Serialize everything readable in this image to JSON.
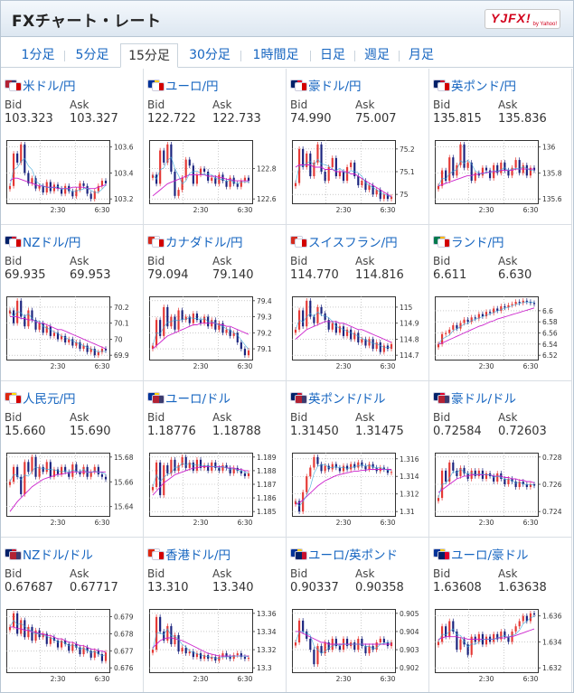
{
  "header": {
    "title": "FXチャート・レート",
    "logo_text": "YJFX!",
    "logo_sub": "by Yahoo!"
  },
  "tabs": [
    {
      "label": "1分足",
      "active": false
    },
    {
      "label": "5分足",
      "active": false
    },
    {
      "label": "15分足",
      "active": true
    },
    {
      "label": "30分足",
      "active": false
    },
    {
      "label": "1時間足",
      "active": false
    },
    {
      "label": "日足",
      "active": false
    },
    {
      "label": "週足",
      "active": false
    },
    {
      "label": "月足",
      "active": false
    }
  ],
  "labels": {
    "bid": "Bid",
    "ask": "Ask"
  },
  "colors": {
    "link": "#1665c0",
    "up": "#e53935",
    "down": "#1a237e",
    "ma": "#cc22cc",
    "ma2": "#3aa6d8"
  },
  "x_ticks": [
    "2:30",
    "6:30"
  ],
  "pairs": [
    {
      "name": "米ドル/円",
      "flags": [
        "us",
        "jp"
      ],
      "bid": "103.323",
      "ask": "103.327",
      "yticks": [
        "103.6",
        "103.4",
        "103.2"
      ],
      "series": [
        103.3,
        103.55,
        103.48,
        103.62,
        103.4,
        103.32,
        103.36,
        103.28,
        103.3,
        103.25,
        103.33,
        103.26,
        103.31,
        103.28,
        103.24,
        103.3,
        103.26,
        103.22,
        103.27,
        103.32,
        103.3,
        103.24,
        103.2,
        103.26,
        103.3,
        103.34,
        103.32
      ],
      "ma": [
        103.34,
        103.36,
        103.36,
        103.35,
        103.34,
        103.33,
        103.32,
        103.31,
        103.3,
        103.3,
        103.29,
        103.29,
        103.29,
        103.28,
        103.28,
        103.28,
        103.28,
        103.29,
        103.29,
        103.29,
        103.29,
        103.28,
        103.28,
        103.28,
        103.29,
        103.3,
        103.31
      ]
    },
    {
      "name": "ユーロ/円",
      "flags": [
        "eu",
        "jp"
      ],
      "bid": "122.722",
      "ask": "122.733",
      "yticks": [
        "122.8",
        "122.6"
      ],
      "series": [
        122.76,
        122.7,
        122.92,
        122.84,
        122.96,
        122.78,
        122.62,
        122.66,
        122.74,
        122.86,
        122.82,
        122.7,
        122.76,
        122.8,
        122.78,
        122.72,
        122.74,
        122.7,
        122.76,
        122.72,
        122.68,
        122.74,
        122.7,
        122.68,
        122.72,
        122.74,
        122.72
      ],
      "ma": [
        122.62,
        122.64,
        122.66,
        122.68,
        122.7,
        122.71,
        122.72,
        122.73,
        122.74,
        122.75,
        122.76,
        122.76,
        122.76,
        122.76,
        122.76,
        122.75,
        122.75,
        122.75,
        122.74,
        122.74,
        122.73,
        122.73,
        122.72,
        122.72,
        122.72,
        122.72,
        122.72
      ]
    },
    {
      "name": "豪ドル/円",
      "flags": [
        "au",
        "jp"
      ],
      "bid": "74.990",
      "ask": "75.007",
      "yticks": [
        "75.2",
        "75.1",
        "75"
      ],
      "series": [
        75.05,
        75.2,
        75.12,
        75.18,
        75.08,
        75.14,
        75.22,
        75.1,
        75.06,
        75.12,
        75.16,
        75.08,
        75.1,
        75.06,
        75.12,
        75.14,
        75.08,
        75.04,
        75.06,
        75.02,
        75.04,
        75.0,
        75.02,
        74.98,
        75.0,
        74.98,
        74.99
      ],
      "ma": [
        75.12,
        75.13,
        75.13,
        75.13,
        75.13,
        75.12,
        75.12,
        75.12,
        75.11,
        75.11,
        75.11,
        75.1,
        75.1,
        75.1,
        75.1,
        75.09,
        75.09,
        75.08,
        75.07,
        75.06,
        75.05,
        75.04,
        75.03,
        75.02,
        75.01,
        75.0,
        74.99
      ]
    },
    {
      "name": "英ポンド/円",
      "flags": [
        "uk",
        "jp"
      ],
      "bid": "135.815",
      "ask": "135.836",
      "yticks": [
        "136",
        "135.8",
        "135.6"
      ],
      "series": [
        135.7,
        135.82,
        135.74,
        135.92,
        135.78,
        135.86,
        136.02,
        135.84,
        135.88,
        135.74,
        135.8,
        135.78,
        135.84,
        135.82,
        135.76,
        135.86,
        135.8,
        135.88,
        135.82,
        135.78,
        135.84,
        135.9,
        135.8,
        135.86,
        135.78,
        135.84,
        135.82
      ],
      "ma": [
        135.7,
        135.71,
        135.72,
        135.73,
        135.74,
        135.75,
        135.76,
        135.77,
        135.78,
        135.78,
        135.79,
        135.79,
        135.8,
        135.8,
        135.81,
        135.81,
        135.81,
        135.82,
        135.82,
        135.82,
        135.82,
        135.83,
        135.83,
        135.83,
        135.83,
        135.83,
        135.83
      ]
    },
    {
      "name": "NZドル/円",
      "flags": [
        "nz",
        "jp"
      ],
      "bid": "69.935",
      "ask": "69.953",
      "yticks": [
        "70.2",
        "70.1",
        "70",
        "69.9"
      ],
      "series": [
        70.18,
        70.1,
        70.24,
        70.14,
        70.08,
        70.18,
        70.12,
        70.06,
        70.1,
        70.04,
        70.08,
        70.02,
        70.04,
        70.0,
        70.02,
        69.98,
        70.0,
        69.96,
        69.98,
        69.94,
        69.96,
        69.92,
        69.94,
        69.9,
        69.92,
        69.94,
        69.93
      ],
      "ma": [
        70.14,
        70.14,
        70.14,
        70.13,
        70.13,
        70.12,
        70.12,
        70.11,
        70.1,
        70.1,
        70.09,
        70.08,
        70.07,
        70.06,
        70.06,
        70.05,
        70.04,
        70.03,
        70.02,
        70.01,
        70.0,
        69.99,
        69.98,
        69.97,
        69.96,
        69.95,
        69.94
      ]
    },
    {
      "name": "カナダドル/円",
      "flags": [
        "ca",
        "jp"
      ],
      "bid": "79.094",
      "ask": "79.140",
      "yticks": [
        "79.4",
        "79.3",
        "79.2",
        "79.1"
      ],
      "series": [
        79.12,
        79.28,
        79.18,
        79.36,
        79.24,
        79.3,
        79.22,
        79.34,
        79.28,
        79.3,
        79.26,
        79.32,
        79.28,
        79.26,
        79.3,
        79.24,
        79.28,
        79.22,
        79.26,
        79.2,
        79.22,
        79.18,
        79.2,
        79.14,
        79.1,
        79.06,
        79.09
      ],
      "ma": [
        79.1,
        79.12,
        79.14,
        79.16,
        79.18,
        79.19,
        79.2,
        79.21,
        79.22,
        79.23,
        79.24,
        79.25,
        79.25,
        79.26,
        79.26,
        79.26,
        79.26,
        79.26,
        79.25,
        79.25,
        79.24,
        79.24,
        79.23,
        79.22,
        79.21,
        79.2,
        79.19
      ]
    },
    {
      "name": "スイスフラン/円",
      "flags": [
        "ch",
        "jp"
      ],
      "bid": "114.770",
      "ask": "114.816",
      "yticks": [
        "115",
        "114.9",
        "114.8",
        "114.7"
      ],
      "series": [
        114.86,
        114.98,
        114.88,
        115.04,
        114.94,
        114.9,
        115.0,
        114.96,
        114.92,
        114.86,
        114.9,
        114.84,
        114.88,
        114.82,
        114.86,
        114.8,
        114.84,
        114.78,
        114.8,
        114.76,
        114.8,
        114.74,
        114.78,
        114.72,
        114.76,
        114.74,
        114.77
      ],
      "ma": [
        114.8,
        114.82,
        114.84,
        114.86,
        114.87,
        114.88,
        114.89,
        114.9,
        114.91,
        114.91,
        114.91,
        114.91,
        114.9,
        114.9,
        114.89,
        114.88,
        114.87,
        114.86,
        114.86,
        114.85,
        114.84,
        114.83,
        114.82,
        114.81,
        114.8,
        114.79,
        114.78
      ]
    },
    {
      "name": "ランド/円",
      "flags": [
        "za",
        "jp"
      ],
      "bid": "6.611",
      "ask": "6.630",
      "yticks": [
        "6.6",
        "6.58",
        "6.56",
        "6.54",
        "6.52"
      ],
      "series": [
        6.54,
        6.558,
        6.56,
        6.566,
        6.574,
        6.568,
        6.578,
        6.584,
        6.58,
        6.588,
        6.586,
        6.594,
        6.59,
        6.598,
        6.596,
        6.604,
        6.6,
        6.608,
        6.606,
        6.61,
        6.612,
        6.616,
        6.614,
        6.618,
        6.616,
        6.614,
        6.612
      ],
      "ma": [
        6.54,
        6.542,
        6.545,
        6.548,
        6.551,
        6.554,
        6.557,
        6.56,
        6.563,
        6.566,
        6.569,
        6.572,
        6.574,
        6.577,
        6.58,
        6.582,
        6.585,
        6.587,
        6.589,
        6.591,
        6.593,
        6.595,
        6.597,
        6.599,
        6.601,
        6.603,
        6.605
      ]
    },
    {
      "name": "人民元/円",
      "flags": [
        "cn",
        "jp"
      ],
      "bid": "15.660",
      "ask": "15.690",
      "yticks": [
        "15.68",
        "15.66",
        "15.64"
      ],
      "series": [
        15.66,
        15.672,
        15.664,
        15.65,
        15.676,
        15.668,
        15.68,
        15.664,
        15.672,
        15.668,
        15.676,
        15.664,
        15.67,
        15.666,
        15.672,
        15.668,
        15.664,
        15.674,
        15.668,
        15.666,
        15.672,
        15.664,
        15.668,
        15.672,
        15.666,
        15.664,
        15.662
      ],
      "ma": [
        15.636,
        15.64,
        15.644,
        15.647,
        15.65,
        15.653,
        15.656,
        15.658,
        15.66,
        15.662,
        15.663,
        15.664,
        15.665,
        15.666,
        15.666,
        15.667,
        15.667,
        15.668,
        15.668,
        15.668,
        15.668,
        15.668,
        15.668,
        15.668,
        15.668,
        15.668,
        15.668
      ]
    },
    {
      "name": "ユーロ/ドル",
      "flags": [
        "eu",
        "us"
      ],
      "bid": "1.18776",
      "ask": "1.18788",
      "yticks": [
        "1.189",
        "1.188",
        "1.187",
        "1.186",
        "1.185"
      ],
      "series": [
        1.1868,
        1.1886,
        1.1862,
        1.1884,
        1.1878,
        1.1888,
        1.188,
        1.1884,
        1.189,
        1.1882,
        1.1886,
        1.188,
        1.1888,
        1.1882,
        1.1884,
        1.188,
        1.1886,
        1.1882,
        1.188,
        1.1884,
        1.1882,
        1.1878,
        1.1882,
        1.188,
        1.1878,
        1.1876,
        1.1878
      ],
      "ma": [
        1.1862,
        1.1865,
        1.1868,
        1.1871,
        1.1873,
        1.1875,
        1.1877,
        1.1878,
        1.1879,
        1.188,
        1.1881,
        1.1882,
        1.1882,
        1.1883,
        1.1883,
        1.1883,
        1.1883,
        1.1883,
        1.1883,
        1.1883,
        1.1882,
        1.1882,
        1.1882,
        1.1881,
        1.1881,
        1.188,
        1.188
      ]
    },
    {
      "name": "英ポンド/ドル",
      "flags": [
        "uk",
        "us"
      ],
      "bid": "1.31450",
      "ask": "1.31475",
      "yticks": [
        "1.316",
        "1.314",
        "1.312",
        "1.31"
      ],
      "series": [
        1.3112,
        1.31,
        1.3122,
        1.314,
        1.315,
        1.3162,
        1.3154,
        1.3146,
        1.3152,
        1.3148,
        1.3154,
        1.315,
        1.3146,
        1.3152,
        1.3148,
        1.3154,
        1.315,
        1.3156,
        1.3152,
        1.3148,
        1.3154,
        1.315,
        1.3146,
        1.315,
        1.3148,
        1.3144,
        1.3145
      ],
      "ma": [
        1.3108,
        1.311,
        1.3113,
        1.3117,
        1.3121,
        1.3125,
        1.3129,
        1.3132,
        1.3135,
        1.3137,
        1.3139,
        1.3141,
        1.3142,
        1.3143,
        1.3144,
        1.3145,
        1.3146,
        1.3146,
        1.3147,
        1.3147,
        1.3148,
        1.3148,
        1.3148,
        1.3148,
        1.3148,
        1.3148,
        1.3148
      ]
    },
    {
      "name": "豪ドル/ドル",
      "flags": [
        "au",
        "us"
      ],
      "bid": "0.72584",
      "ask": "0.72603",
      "yticks": [
        "0.728",
        "0.726",
        "0.724"
      ],
      "series": [
        0.725,
        0.727,
        0.7262,
        0.7276,
        0.727,
        0.7266,
        0.7272,
        0.7268,
        0.7264,
        0.727,
        0.7266,
        0.727,
        0.7264,
        0.7268,
        0.7266,
        0.7262,
        0.7268,
        0.7264,
        0.726,
        0.7264,
        0.7262,
        0.7258,
        0.7262,
        0.726,
        0.7258,
        0.726,
        0.7259
      ],
      "ma": [
        0.7254,
        0.7256,
        0.7258,
        0.726,
        0.7262,
        0.7264,
        0.7265,
        0.7266,
        0.7266,
        0.7267,
        0.7267,
        0.7267,
        0.7267,
        0.7267,
        0.7267,
        0.7266,
        0.7266,
        0.7266,
        0.7265,
        0.7265,
        0.7264,
        0.7264,
        0.7263,
        0.7263,
        0.7262,
        0.7262,
        0.7261
      ]
    },
    {
      "name": "NZドル/ドル",
      "flags": [
        "nz",
        "us"
      ],
      "bid": "0.67687",
      "ask": "0.67717",
      "yticks": [
        "0.679",
        "0.678",
        "0.677",
        "0.676"
      ],
      "series": [
        0.6784,
        0.6792,
        0.678,
        0.6788,
        0.6778,
        0.6784,
        0.6776,
        0.6782,
        0.6778,
        0.678,
        0.6774,
        0.6778,
        0.6776,
        0.6772,
        0.6776,
        0.6774,
        0.677,
        0.6774,
        0.6772,
        0.6768,
        0.6772,
        0.677,
        0.6766,
        0.677,
        0.6768,
        0.6764,
        0.6769
      ],
      "ma": [
        0.6784,
        0.6784,
        0.6783,
        0.6783,
        0.6782,
        0.6782,
        0.6781,
        0.6781,
        0.678,
        0.678,
        0.6779,
        0.6779,
        0.6778,
        0.6777,
        0.6777,
        0.6776,
        0.6775,
        0.6775,
        0.6774,
        0.6773,
        0.6773,
        0.6772,
        0.6771,
        0.6771,
        0.677,
        0.677,
        0.6769
      ]
    },
    {
      "name": "香港ドル/円",
      "flags": [
        "hk",
        "jp"
      ],
      "bid": "13.310",
      "ask": "13.340",
      "yticks": [
        "13.36",
        "13.34",
        "13.32",
        "13.3"
      ],
      "series": [
        13.32,
        13.356,
        13.34,
        13.33,
        13.346,
        13.326,
        13.336,
        13.318,
        13.322,
        13.316,
        13.318,
        13.312,
        13.316,
        13.31,
        13.314,
        13.31,
        13.312,
        13.308,
        13.312,
        13.316,
        13.312,
        13.31,
        13.314,
        13.316,
        13.312,
        13.31,
        13.311
      ],
      "ma": [
        13.322,
        13.326,
        13.33,
        13.332,
        13.333,
        13.333,
        13.332,
        13.331,
        13.33,
        13.328,
        13.326,
        13.324,
        13.322,
        13.32,
        13.318,
        13.316,
        13.315,
        13.314,
        13.313,
        13.313,
        13.313,
        13.313,
        13.313,
        13.313,
        13.313,
        13.313,
        13.313
      ]
    },
    {
      "name": "ユーロ/英ポンド",
      "flags": [
        "eu",
        "uk"
      ],
      "bid": "0.90337",
      "ask": "0.90358",
      "yticks": [
        "0.905",
        "0.904",
        "0.903",
        "0.902"
      ],
      "series": [
        0.9034,
        0.9046,
        0.904,
        0.9036,
        0.903,
        0.9022,
        0.9032,
        0.9028,
        0.9034,
        0.903,
        0.9036,
        0.9032,
        0.903,
        0.9036,
        0.9032,
        0.9034,
        0.903,
        0.9036,
        0.9032,
        0.9028,
        0.9032,
        0.903,
        0.9034,
        0.9036,
        0.9034,
        0.9032,
        0.9034
      ],
      "ma": [
        0.904,
        0.904,
        0.9039,
        0.9038,
        0.9037,
        0.9036,
        0.9035,
        0.9034,
        0.9034,
        0.9033,
        0.9033,
        0.9033,
        0.9033,
        0.9033,
        0.9033,
        0.9033,
        0.9033,
        0.9033,
        0.9033,
        0.9033,
        0.9033,
        0.9033,
        0.9033,
        0.9033,
        0.9033,
        0.9033,
        0.9033
      ]
    },
    {
      "name": "ユーロ/豪ドル",
      "flags": [
        "eu",
        "au"
      ],
      "bid": "1.63608",
      "ask": "1.63638",
      "yticks": [
        "1.636",
        "1.634",
        "1.632"
      ],
      "series": [
        1.634,
        1.6352,
        1.6344,
        1.6356,
        1.6348,
        1.6334,
        1.6342,
        1.6338,
        1.633,
        1.6344,
        1.634,
        1.6346,
        1.6338,
        1.6344,
        1.634,
        1.6346,
        1.6342,
        1.6348,
        1.6344,
        1.634,
        1.6348,
        1.6352,
        1.6356,
        1.636,
        1.6356,
        1.6362,
        1.6361
      ],
      "ma": [
        1.6342,
        1.6343,
        1.6344,
        1.6344,
        1.6344,
        1.6344,
        1.6343,
        1.6343,
        1.6342,
        1.6342,
        1.6342,
        1.6342,
        1.6342,
        1.6342,
        1.6342,
        1.6342,
        1.6343,
        1.6343,
        1.6343,
        1.6344,
        1.6344,
        1.6345,
        1.6346,
        1.6347,
        1.6348,
        1.6349,
        1.635
      ]
    }
  ]
}
